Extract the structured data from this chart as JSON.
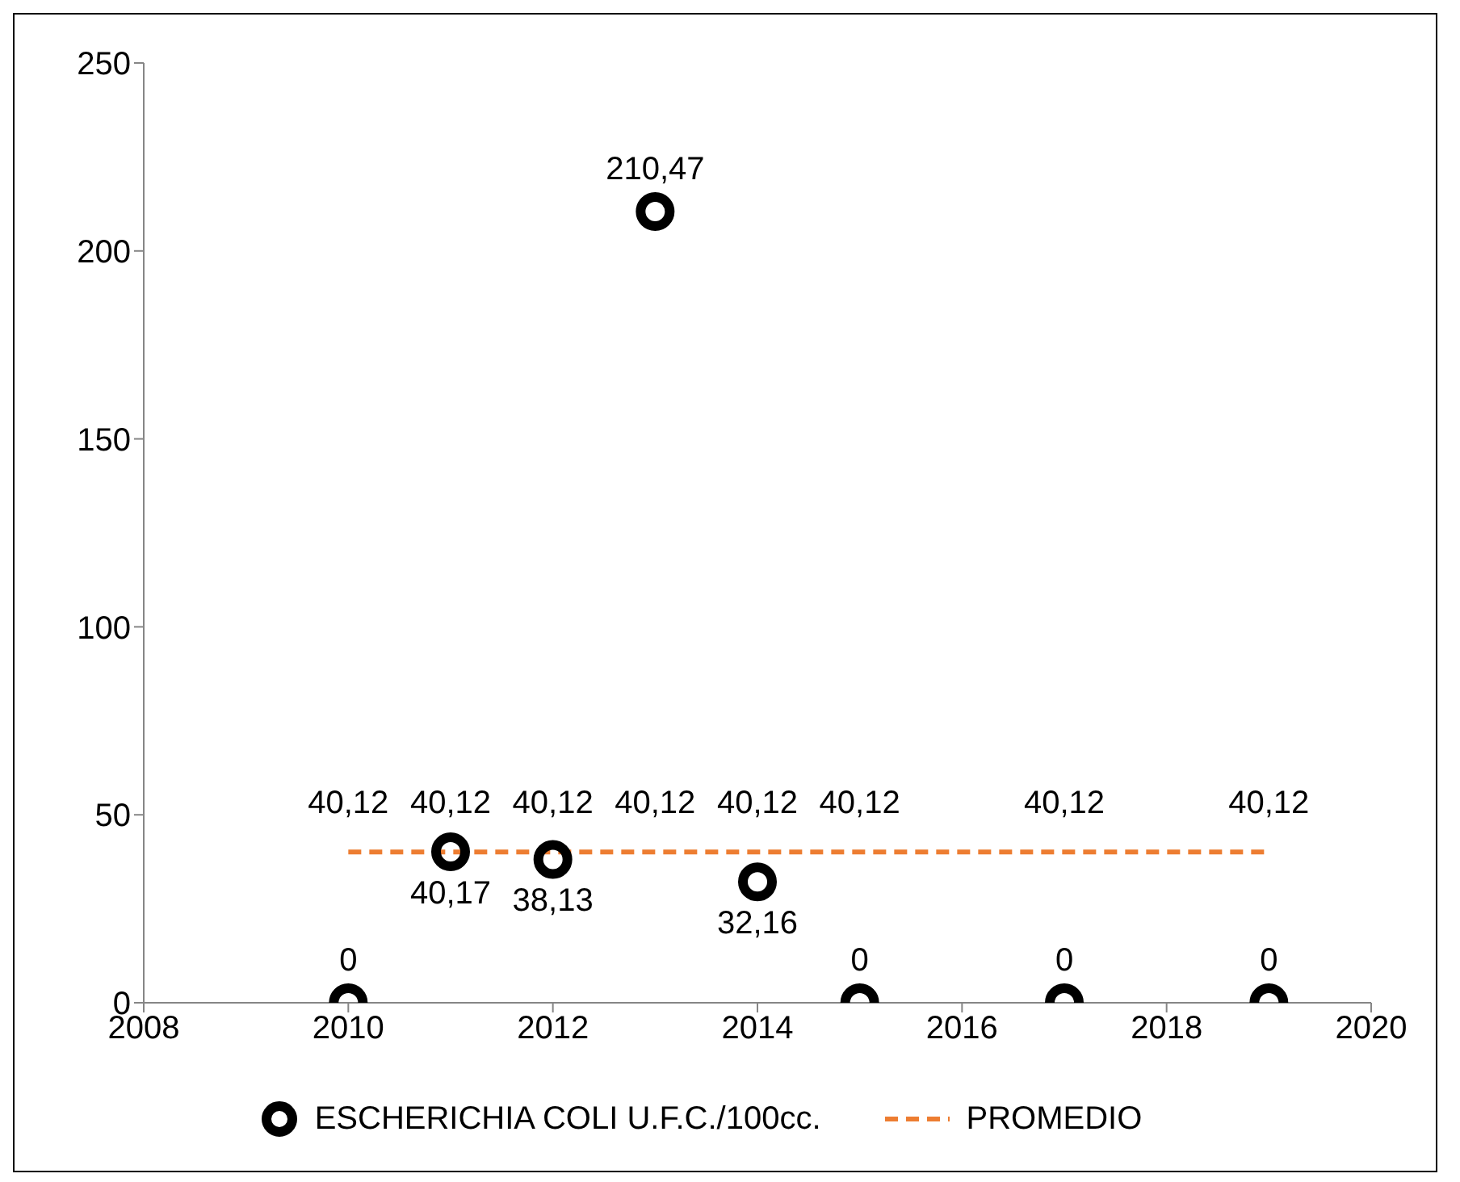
{
  "chart_data": {
    "type": "scatter",
    "x": [
      2010,
      2011,
      2012,
      2013,
      2014,
      2015,
      2017,
      2019
    ],
    "xlim": [
      2008,
      2020
    ],
    "xticks": [
      2008,
      2010,
      2012,
      2014,
      2016,
      2018,
      2020
    ],
    "ylim": [
      0,
      250
    ],
    "yticks": [
      0,
      50,
      100,
      150,
      200,
      250
    ],
    "grid": false,
    "legend": "bottom",
    "series": [
      {
        "name": "ESCHERICHIA COLI U.F.C./100cc.",
        "marker": "circle",
        "color": "#000000",
        "values": [
          0,
          40.17,
          38.13,
          210.47,
          32.16,
          0,
          0,
          0
        ],
        "value_labels": [
          "0",
          "40,17",
          "38,13",
          "210,47",
          "32,16",
          "0",
          "0",
          "0"
        ]
      },
      {
        "name": "PROMEDIO",
        "type": "line",
        "marker": "none",
        "line_style": "dashed",
        "color": "#ed7d31",
        "values": [
          40.12,
          40.12,
          40.12,
          40.12,
          40.12,
          40.12,
          40.12,
          40.12
        ],
        "value_labels": [
          "40,12",
          "40,12",
          "40,12",
          "40,12",
          "40,12",
          "40,12",
          "40,12",
          "40,12"
        ]
      }
    ]
  }
}
